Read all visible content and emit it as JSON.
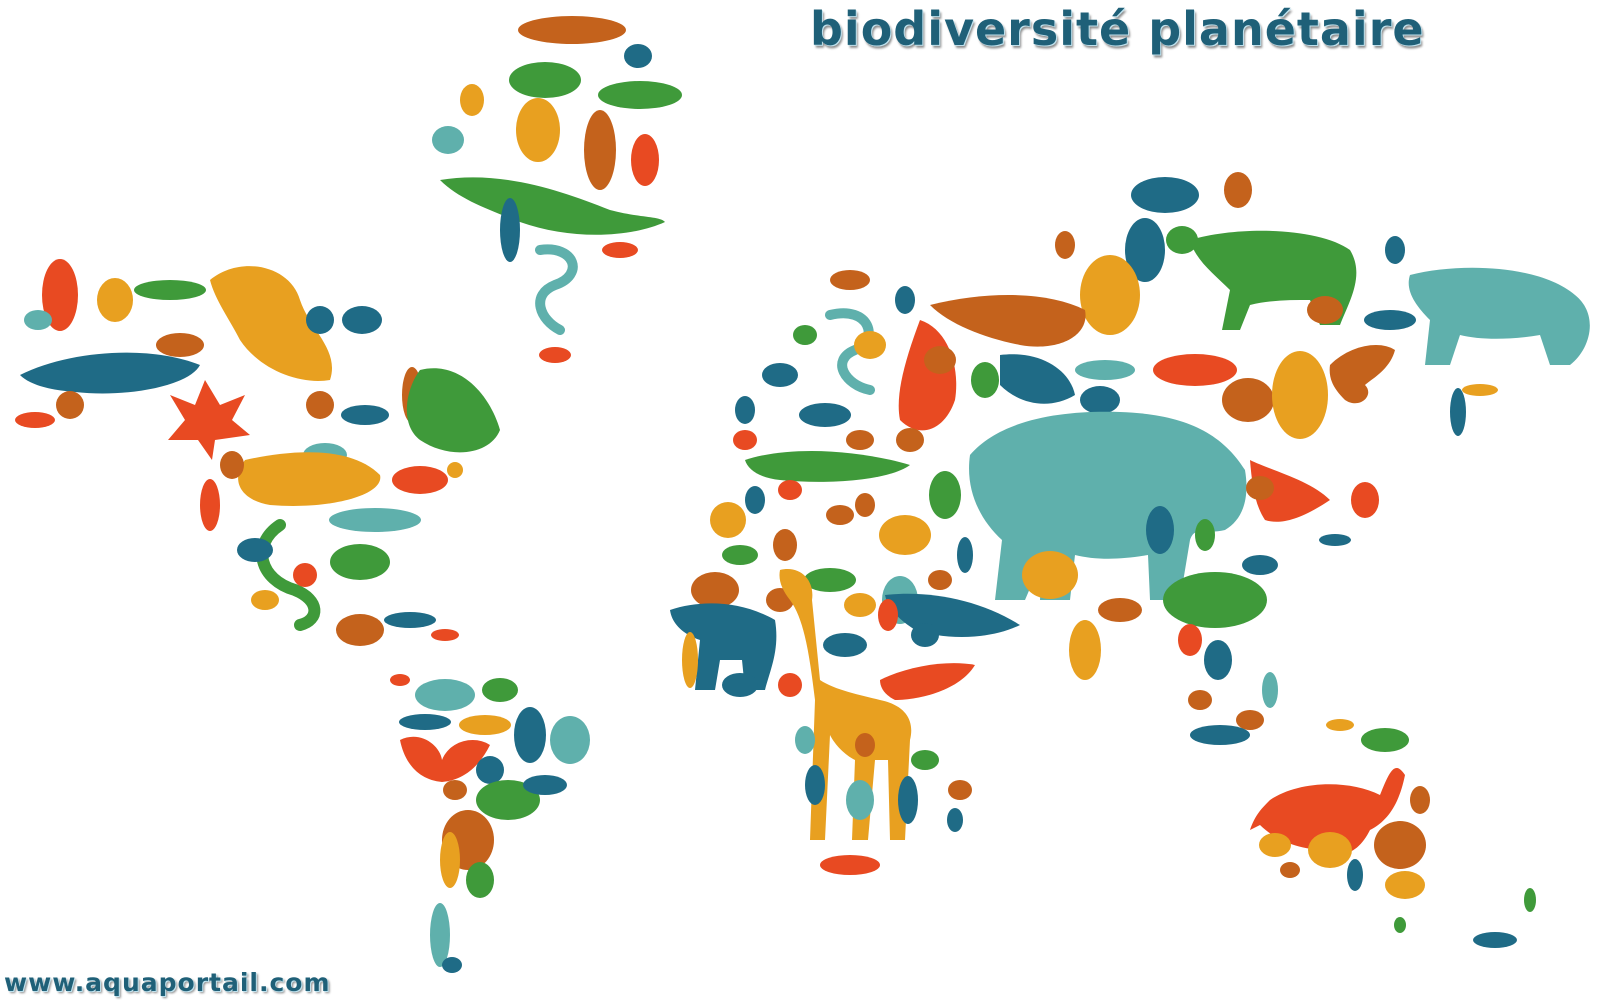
{
  "title": "biodiversité planétaire",
  "watermark": "www.aquaportail.com",
  "palette": {
    "title_text": "#1f6078",
    "teal_blue": "#1f6b86",
    "light_teal": "#5fb0ac",
    "green": "#3f9a3a",
    "orange": "#e8a020",
    "red_orange": "#e84a22",
    "brown_orange": "#c4621c"
  },
  "icons": [
    "world-map-icon",
    "elephant-icon",
    "giraffe-icon",
    "bear-icon",
    "lion-icon",
    "kangaroo-icon",
    "owl-icon",
    "dolphin-icon",
    "butterfly-icon",
    "lizard-icon",
    "bird-icon",
    "turtle-icon",
    "rhino-icon",
    "crocodile-icon",
    "seahorse-icon",
    "snake-icon",
    "monkey-icon",
    "maple-leaf-icon"
  ]
}
